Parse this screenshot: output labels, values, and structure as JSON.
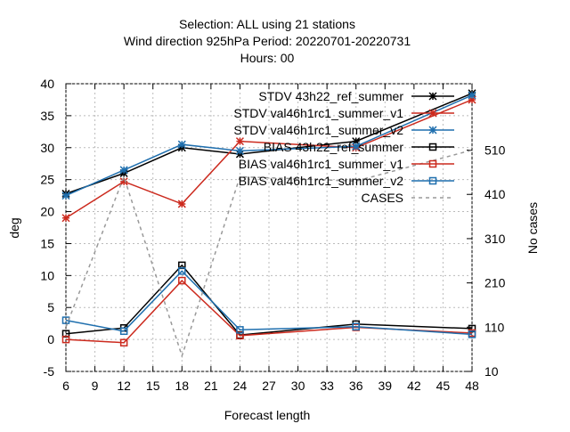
{
  "chart_data": {
    "type": "line",
    "title_lines": [
      "Selection: ALL using    21 stations",
      "Wind direction 925hPa   Period: 20220701-20220731",
      "Hours:  00"
    ],
    "xlabel": "Forecast length",
    "ylabel": "deg",
    "y2label": "No cases",
    "x_ticks": [
      6,
      9,
      12,
      15,
      18,
      21,
      24,
      27,
      30,
      33,
      36,
      39,
      42,
      45,
      48
    ],
    "xlim": [
      6,
      48
    ],
    "y_ticks": [
      -5,
      0,
      5,
      10,
      15,
      20,
      25,
      30,
      35,
      40
    ],
    "ylim": [
      -5,
      40
    ],
    "y2_ticks": [
      10,
      110,
      210,
      310,
      410,
      510
    ],
    "y2lim": [
      10,
      660
    ],
    "legend_position": "top-right",
    "series": [
      {
        "name": "STDV 43h22_ref_summer",
        "axis": "y1",
        "color": "#000000",
        "marker": "star",
        "dash": "",
        "x": [
          6,
          12,
          18,
          24,
          36,
          48
        ],
        "values": [
          22.8,
          26.0,
          30.0,
          29.0,
          31.0,
          38.5
        ]
      },
      {
        "name": "STDV val46h1rc1_summer_v1",
        "axis": "y1",
        "color": "#cc2a1e",
        "marker": "star",
        "dash": "",
        "x": [
          6,
          12,
          18,
          24,
          36,
          48
        ],
        "values": [
          19.0,
          24.7,
          21.2,
          31.0,
          30.0,
          37.5
        ]
      },
      {
        "name": "STDV val46h1rc1_summer_v2",
        "axis": "y1",
        "color": "#1f6fae",
        "marker": "star",
        "dash": "",
        "x": [
          6,
          12,
          18,
          24,
          36,
          48
        ],
        "values": [
          22.5,
          26.5,
          30.5,
          29.5,
          30.2,
          38.2
        ]
      },
      {
        "name": "BIAS 43h22_ref_summer",
        "axis": "y1",
        "color": "#000000",
        "marker": "square",
        "dash": "",
        "x": [
          6,
          12,
          18,
          24,
          36,
          48
        ],
        "values": [
          0.9,
          1.8,
          11.6,
          0.7,
          2.4,
          1.7
        ]
      },
      {
        "name": "BIAS val46h1rc1_summer_v1",
        "axis": "y1",
        "color": "#cc2a1e",
        "marker": "square",
        "dash": "",
        "x": [
          6,
          12,
          18,
          24,
          36,
          48
        ],
        "values": [
          0.0,
          -0.5,
          9.2,
          0.6,
          1.9,
          1.0
        ]
      },
      {
        "name": "BIAS val46h1rc1_summer_v2",
        "axis": "y1",
        "color": "#1f6fae",
        "marker": "square",
        "dash": "",
        "x": [
          6,
          12,
          18,
          24,
          36,
          48
        ],
        "values": [
          3.0,
          1.3,
          10.7,
          1.5,
          2.0,
          0.8
        ]
      },
      {
        "name": "CASES",
        "axis": "y2",
        "color": "#999999",
        "marker": "none",
        "dash": "4,4",
        "x": [
          6,
          12,
          18,
          24,
          36,
          48
        ],
        "values": [
          110,
          450,
          45,
          450,
          440,
          510
        ]
      }
    ]
  }
}
